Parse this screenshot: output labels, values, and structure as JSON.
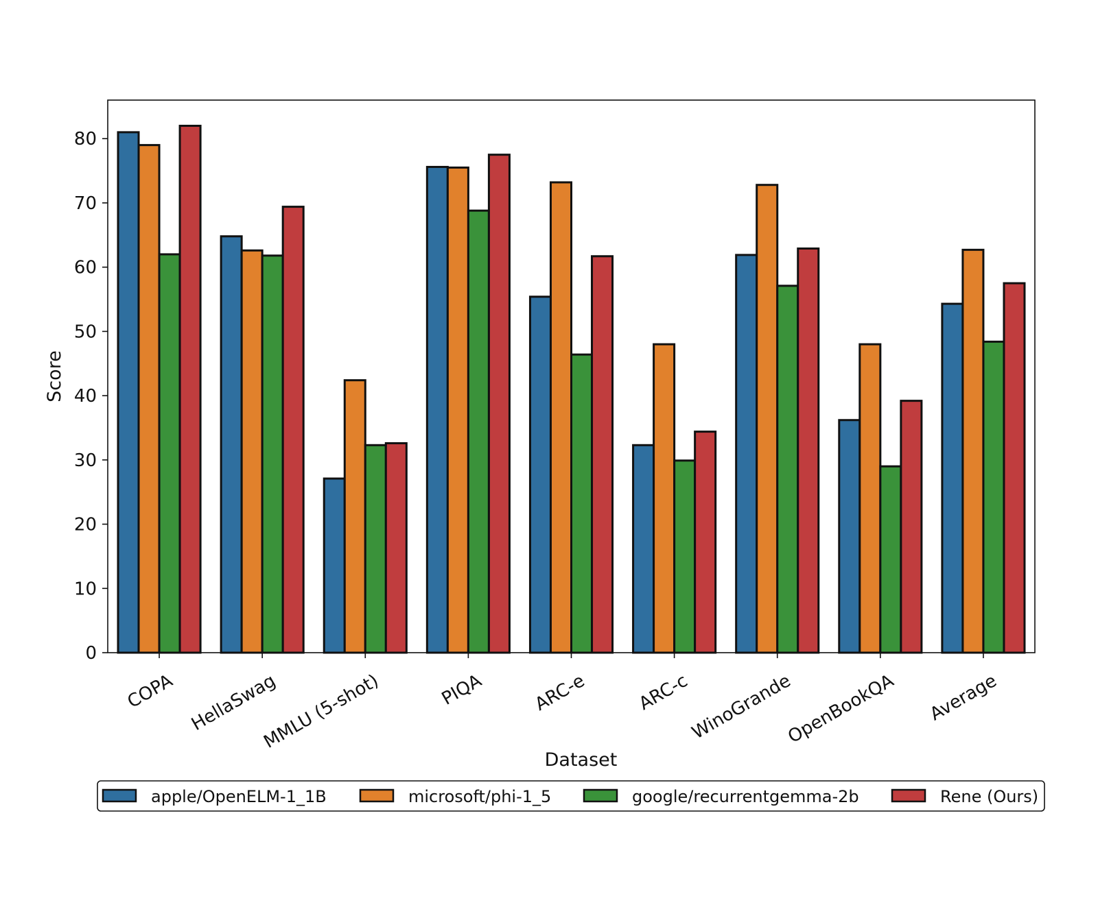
{
  "chart_data": {
    "type": "bar",
    "xlabel": "Dataset",
    "ylabel": "Score",
    "ylim": [
      0,
      86
    ],
    "yticks": [
      0,
      10,
      20,
      30,
      40,
      50,
      60,
      70,
      80
    ],
    "categories": [
      "COPA",
      "HellaSwag",
      "MMLU (5-shot)",
      "PIQA",
      "ARC-e",
      "ARC-c",
      "WinoGrande",
      "OpenBookQA",
      "Average"
    ],
    "series": [
      {
        "name": "apple/OpenELM-1_1B",
        "color": "#2f6f9f",
        "values": [
          81.0,
          64.8,
          27.1,
          75.6,
          55.4,
          32.3,
          61.9,
          36.2,
          54.3
        ]
      },
      {
        "name": "microsoft/phi-1_5",
        "color": "#e1812c",
        "values": [
          79.0,
          62.6,
          42.4,
          75.5,
          73.2,
          48.0,
          72.8,
          48.0,
          62.7
        ]
      },
      {
        "name": "google/recurrentgemma-2b",
        "color": "#3a923a",
        "values": [
          62.0,
          61.8,
          32.3,
          68.8,
          46.4,
          29.9,
          57.1,
          29.0,
          48.4
        ]
      },
      {
        "name": "Rene (Ours)",
        "color": "#c03d3e",
        "values": [
          82.0,
          69.4,
          32.6,
          77.5,
          61.7,
          34.4,
          62.9,
          39.2,
          57.5
        ]
      }
    ],
    "legend_position": "bottom",
    "grid": false
  }
}
